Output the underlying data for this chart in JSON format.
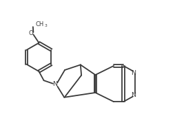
{
  "background_color": "#ffffff",
  "line_color": "#3a3a3a",
  "line_width": 1.3,
  "figsize": [
    2.55,
    1.69
  ],
  "dpi": 100,
  "xlim": [
    0,
    10
  ],
  "ylim": [
    0,
    6.6
  ]
}
